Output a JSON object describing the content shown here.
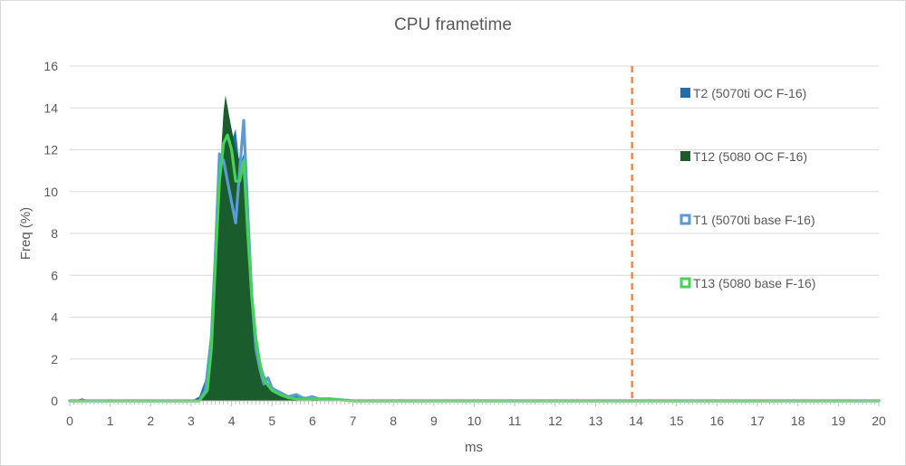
{
  "chart_data": {
    "type": "area",
    "title": "CPU frametime",
    "xlabel": "ms",
    "ylabel": "Freq (%)",
    "xlim": [
      0,
      20
    ],
    "ylim": [
      0,
      16
    ],
    "x_ticks": [
      0,
      1,
      2,
      3,
      4,
      5,
      6,
      7,
      8,
      9,
      10,
      11,
      12,
      13,
      14,
      15,
      16,
      17,
      18,
      19,
      20
    ],
    "y_ticks": [
      0,
      2,
      4,
      6,
      8,
      10,
      12,
      14,
      16
    ],
    "grid": "horizontal",
    "legend_position": "right",
    "reference_line": {
      "x": 13.9,
      "color": "#ED7D31",
      "style": "dashed"
    },
    "series": [
      {
        "name": "T2 (5070ti OC F-16)",
        "style": "filled",
        "color": "#1F6FB4",
        "points": [
          [
            0,
            0
          ],
          [
            0.2,
            0.05
          ],
          [
            0.3,
            0.12
          ],
          [
            0.45,
            0.03
          ],
          [
            0.6,
            0
          ],
          [
            3.0,
            0
          ],
          [
            3.2,
            0.2
          ],
          [
            3.35,
            1.0
          ],
          [
            3.5,
            3.6
          ],
          [
            3.6,
            7.0
          ],
          [
            3.7,
            11.5
          ],
          [
            3.8,
            12.0
          ],
          [
            3.9,
            12.7
          ],
          [
            4.0,
            12.4
          ],
          [
            4.1,
            13.0
          ],
          [
            4.2,
            11.2
          ],
          [
            4.3,
            11.8
          ],
          [
            4.4,
            8.0
          ],
          [
            4.5,
            5.0
          ],
          [
            4.6,
            3.0
          ],
          [
            4.7,
            2.0
          ],
          [
            4.8,
            1.3
          ],
          [
            4.9,
            0.8
          ],
          [
            5.0,
            0.5
          ],
          [
            5.2,
            0.3
          ],
          [
            5.4,
            0.15
          ],
          [
            5.6,
            0.25
          ],
          [
            5.8,
            0.1
          ],
          [
            6.0,
            0.05
          ],
          [
            6.5,
            0.05
          ],
          [
            7.0,
            0
          ],
          [
            20,
            0
          ]
        ]
      },
      {
        "name": "T12 (5080 OC F-16)",
        "style": "filled",
        "color": "#1A5C2B",
        "points": [
          [
            0,
            0
          ],
          [
            0.2,
            0.05
          ],
          [
            0.3,
            0.1
          ],
          [
            0.45,
            0.03
          ],
          [
            0.6,
            0
          ],
          [
            3.0,
            0
          ],
          [
            3.3,
            0.2
          ],
          [
            3.45,
            1.5
          ],
          [
            3.6,
            6.0
          ],
          [
            3.7,
            10.5
          ],
          [
            3.8,
            13.8
          ],
          [
            3.85,
            14.6
          ],
          [
            3.95,
            13.5
          ],
          [
            4.1,
            12.0
          ],
          [
            4.2,
            11.5
          ],
          [
            4.3,
            10.5
          ],
          [
            4.4,
            7.5
          ],
          [
            4.5,
            4.5
          ],
          [
            4.6,
            2.5
          ],
          [
            4.7,
            1.5
          ],
          [
            4.8,
            0.9
          ],
          [
            5.0,
            0.5
          ],
          [
            5.2,
            0.3
          ],
          [
            5.4,
            0.2
          ],
          [
            5.6,
            0.15
          ],
          [
            5.8,
            0.2
          ],
          [
            6.0,
            0.05
          ],
          [
            6.5,
            0.05
          ],
          [
            7.0,
            0
          ],
          [
            20,
            0
          ]
        ]
      },
      {
        "name": "T1 (5070ti base F-16)",
        "style": "line",
        "color": "#5B9BD5",
        "points": [
          [
            0,
            0
          ],
          [
            3.2,
            0
          ],
          [
            3.35,
            0.5
          ],
          [
            3.5,
            3.0
          ],
          [
            3.6,
            7.0
          ],
          [
            3.7,
            11.8
          ],
          [
            3.8,
            11.5
          ],
          [
            3.9,
            10.5
          ],
          [
            4.0,
            9.5
          ],
          [
            4.1,
            8.5
          ],
          [
            4.2,
            11.0
          ],
          [
            4.3,
            13.4
          ],
          [
            4.4,
            9.0
          ],
          [
            4.5,
            5.0
          ],
          [
            4.6,
            2.5
          ],
          [
            4.7,
            1.5
          ],
          [
            4.8,
            0.8
          ],
          [
            4.9,
            1.1
          ],
          [
            5.0,
            0.6
          ],
          [
            5.2,
            0.4
          ],
          [
            5.4,
            0.2
          ],
          [
            5.6,
            0.3
          ],
          [
            5.8,
            0.1
          ],
          [
            6.0,
            0.2
          ],
          [
            6.2,
            0.05
          ],
          [
            6.4,
            0.1
          ],
          [
            7.0,
            0
          ],
          [
            20,
            0
          ]
        ]
      },
      {
        "name": "T13 (5080 base F-16)",
        "style": "line",
        "color": "#47D15A",
        "points": [
          [
            0,
            0
          ],
          [
            3.2,
            0
          ],
          [
            3.4,
            0.5
          ],
          [
            3.5,
            2.5
          ],
          [
            3.6,
            6.5
          ],
          [
            3.7,
            10.5
          ],
          [
            3.8,
            12.3
          ],
          [
            3.9,
            12.7
          ],
          [
            4.0,
            12.0
          ],
          [
            4.1,
            10.5
          ],
          [
            4.2,
            10.5
          ],
          [
            4.3,
            11.5
          ],
          [
            4.4,
            8.0
          ],
          [
            4.5,
            5.0
          ],
          [
            4.6,
            3.0
          ],
          [
            4.7,
            1.8
          ],
          [
            4.8,
            1.0
          ],
          [
            5.0,
            0.5
          ],
          [
            5.2,
            0.3
          ],
          [
            5.4,
            0.15
          ],
          [
            5.6,
            0.1
          ],
          [
            5.8,
            0.05
          ],
          [
            6.0,
            0.1
          ],
          [
            6.4,
            0.1
          ],
          [
            7.0,
            0
          ],
          [
            20,
            0
          ]
        ]
      }
    ]
  }
}
